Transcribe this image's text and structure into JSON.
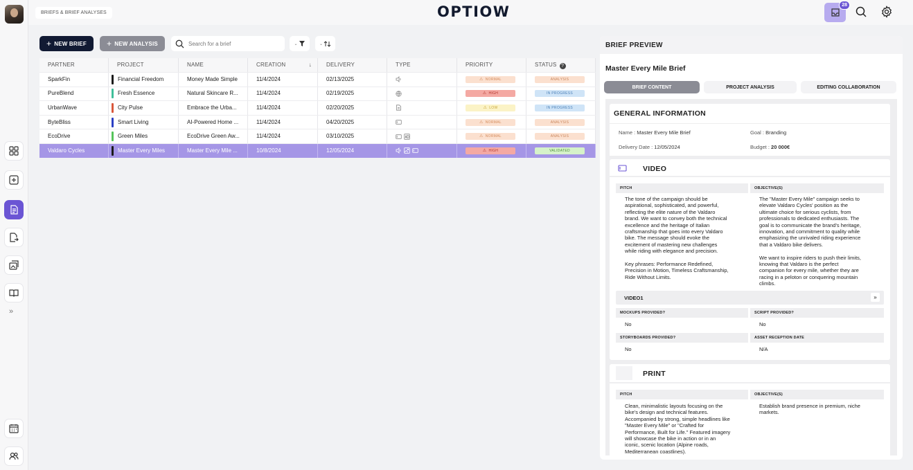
{
  "breadcrumb": "BRIEFS & BRIEF ANALYSES",
  "logo": "OPTIOW",
  "inbox_count": "28",
  "toolbar": {
    "new_brief": "NEW BRIEF",
    "new_analysis": "NEW ANALYSIS",
    "search_placeholder": "Search for a brief"
  },
  "table": {
    "headers": [
      "PARTNER",
      "PROJECT",
      "NAME",
      "CREATION",
      "DELIVERY",
      "TYPE",
      "PRIORITY",
      "STATUS"
    ],
    "rows": [
      {
        "partner": "SparkFin",
        "project": "Financial Freedom",
        "project_color": "#1a1a1a",
        "name": "Money Made Simple",
        "creation": "11/4/2024",
        "delivery": "02/13/2025",
        "priority": "NORMAL",
        "status": "ANALYSIS"
      },
      {
        "partner": "PureBlend",
        "project": "Fresh Essence",
        "project_color": "#3fbf9a",
        "name": "Natural Skincare R...",
        "creation": "11/4/2024",
        "delivery": "02/19/2025",
        "priority": "HIGH",
        "status": "IN PROGRESS"
      },
      {
        "partner": "UrbanWave",
        "project": "City Pulse",
        "project_color": "#d9573b",
        "name": "Embrace the Urba...",
        "creation": "11/4/2024",
        "delivery": "02/20/2025",
        "priority": "LOW",
        "status": "IN PROGRESS"
      },
      {
        "partner": "ByteBliss",
        "project": "Smart Living",
        "project_color": "#2a3fc4",
        "name": "AI-Powered Home ...",
        "creation": "11/4/2024",
        "delivery": "04/20/2025",
        "priority": "NORMAL",
        "status": "ANALYSIS"
      },
      {
        "partner": "EcoDrive",
        "project": "Green Miles",
        "project_color": "#55c45a",
        "name": "EcoDrive Green Aw...",
        "creation": "11/4/2024",
        "delivery": "03/10/2025",
        "priority": "NORMAL",
        "status": "ANALYSIS"
      },
      {
        "partner": "Valdaro Cycles",
        "project": "Master Every Miles",
        "project_color": "#1a1a1a",
        "name": "Master Every Mile ...",
        "creation": "10/8/2024",
        "delivery": "12/05/2024",
        "priority": "HIGH",
        "status": "VALIDATED"
      }
    ]
  },
  "colors": {
    "accent": "#6b55d4",
    "priority_normal_bg": "#fbe0cf",
    "priority_normal_fg": "#d48a5a",
    "priority_high_bg": "#f4a9a3",
    "priority_high_fg": "#b2362d",
    "priority_low_bg": "#fbf3c6",
    "priority_low_fg": "#c9a63a",
    "status_analysis_bg": "#fbe0cf",
    "status_analysis_fg": "#c9845a",
    "status_progress_bg": "#cfe4f7",
    "status_progress_fg": "#4b80b8",
    "status_validated_bg": "#d6f2c9",
    "status_validated_fg": "#4b8a39"
  },
  "preview": {
    "header": "BRIEF PREVIEW",
    "title": "Master Every Mile Brief",
    "tabs": [
      "BRIEF CONTENT",
      "PROJECT ANALYSIS",
      "EDITING COLLABORATION"
    ],
    "general": {
      "title": "GENERAL INFORMATION",
      "name_label": "Name :",
      "name": "Master Every Mile Brief",
      "goal_label": "Goal :",
      "goal": "Branding",
      "delivery_label": "Delivery Date :",
      "delivery": "12/05/2024",
      "budget_label": "Budget :",
      "budget": "20 000€"
    },
    "video": {
      "title": "VIDEO",
      "pitch_label": "PITCH",
      "pitch_lines": [
        "The tone of the campaign should be",
        "aspirational, sophisticated, and powerful,",
        "reflecting the elite nature of the Valdaro",
        "brand. We want to convey both the technical",
        "excellence and the heritage of Italian",
        "craftsmanship that goes into every Valdaro",
        "bike. The message should evoke the",
        "excitement of mastering new challenges",
        "while riding with elegance and precision.",
        "",
        "Key phrases: Performance Redefined,",
        "Precision in Motion, Timeless Craftsmanship,",
        "Ride Without Limits."
      ],
      "objective_label": "OBJECTIVE(S)",
      "objective_lines": [
        "The \"Master Every Mile\" campaign seeks to",
        "elevate Valdaro Cycles' position as the",
        "ultimate choice for serious cyclists, from",
        "professionals to dedicated enthusiasts. The",
        "goal is to communicate the brand's heritage,",
        "innovation, and commitment to quality while",
        "emphasizing the unrivaled riding experience",
        "that a Valdaro bike delivers.",
        "",
        "We want to inspire riders to push their limits,",
        "knowing that Valdaro is the perfect",
        "companion for every mile, whether they are",
        "racing in a peloton or conquering mountain",
        "climbs."
      ],
      "sub_title": "VIDEO1",
      "mockups_label": "MOCKUPS PROVIDED?",
      "mockups": "No",
      "script_label": "SCRIPT PROVIDED?",
      "script": "No",
      "storyboards_label": "STORYBOARDS PROVIDED?",
      "storyboards": "No",
      "asset_label": "ASSET RECEPTION DATE",
      "asset": "N/A"
    },
    "print": {
      "title": "PRINT",
      "pitch_label": "PITCH",
      "pitch_lines": [
        "Clean, minimalistic layouts focusing on the",
        "bike's design and technical features.",
        "Accompanied by strong, simple headlines like",
        "\"Master Every Mile\" or \"Crafted for",
        "Performance, Built for Life.\" Featured imagery",
        "will showcase the bike in action or in an",
        "iconic, scenic location (Alpine roads,",
        "Mediterranean coastlines)."
      ],
      "objective_label": "OBJECTIVE(S)",
      "objective_lines": [
        "Establish brand presence in premium, niche",
        "markets."
      ]
    }
  }
}
